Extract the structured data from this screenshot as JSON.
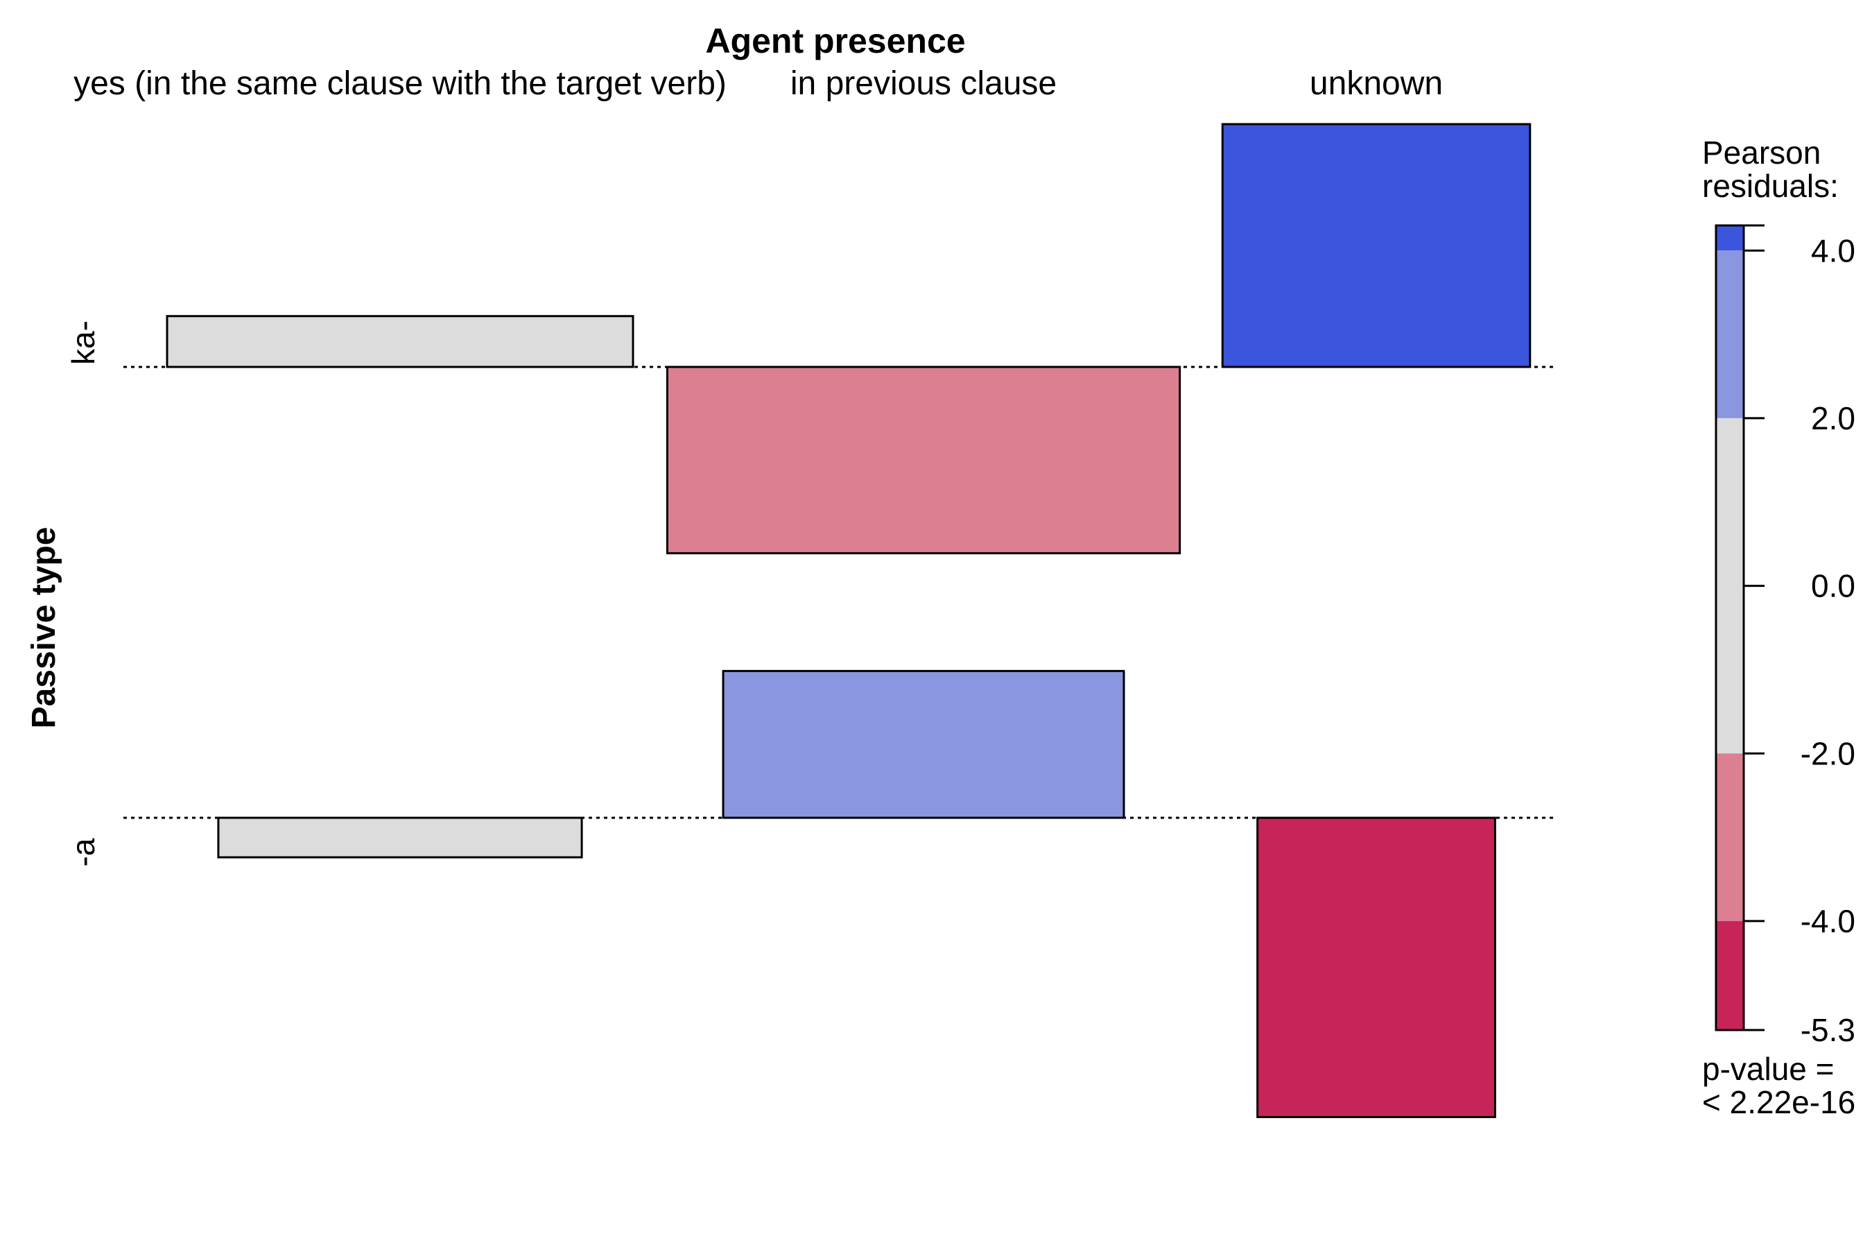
{
  "chart_data": {
    "type": "association-plot",
    "title": "Agent presence",
    "column_variable": "Agent presence",
    "row_variable": "Passive type",
    "columns": [
      "yes (in the same clause with the target verb)",
      "in previous clause",
      "unknown"
    ],
    "rows": [
      "ka-",
      "-a"
    ],
    "residuals": [
      [
        0.9,
        -3.3,
        4.3
      ],
      [
        -0.7,
        2.6,
        -5.3
      ]
    ],
    "relative_widths": [
      [
        1.0,
        1.1,
        0.66
      ],
      [
        0.78,
        0.86,
        0.51
      ]
    ],
    "legend": {
      "title_lines": [
        "Pearson",
        "residuals:"
      ],
      "min": -5.3,
      "max": 4.3,
      "ticks": [
        "4.0",
        "2.0",
        "0.0",
        "-2.0",
        "-4.0",
        "-5.3"
      ],
      "tick_values": [
        4.0,
        2.0,
        0.0,
        -2.0,
        -4.0,
        -5.3
      ],
      "bands": [
        {
          "from": 4.0,
          "to": 4.3,
          "color": "#3B56DD"
        },
        {
          "from": 2.0,
          "to": 4.0,
          "color": "#8B96E0"
        },
        {
          "from": -2.0,
          "to": 2.0,
          "color": "#DCDCDC"
        },
        {
          "from": -4.0,
          "to": -2.0,
          "color": "#DB7F91"
        },
        {
          "from": -5.3,
          "to": -4.0,
          "color": "#C72558"
        }
      ]
    },
    "p_value_lines": [
      "p-value =",
      "< 2.22e-16"
    ],
    "colors": {
      "strong_positive": "#3B56DD",
      "moderate_positive": "#8B96E0",
      "neutral": "#DCDCDC",
      "moderate_negative": "#DB7F91",
      "strong_negative": "#C72558"
    }
  }
}
